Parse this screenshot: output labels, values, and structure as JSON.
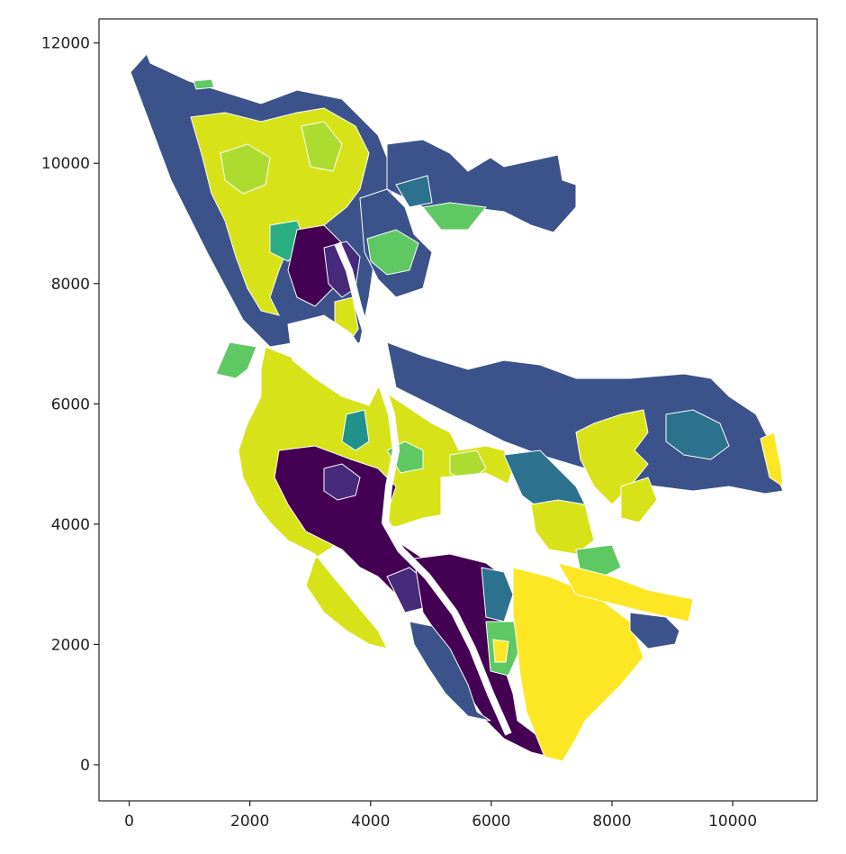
{
  "chart_data": {
    "type": "map",
    "title": "",
    "xlabel": "",
    "ylabel": "",
    "xlim": [
      -500,
      11400
    ],
    "ylim": [
      -600,
      12400
    ],
    "x_ticks": [
      0,
      2000,
      4000,
      6000,
      8000,
      10000
    ],
    "y_ticks": [
      0,
      2000,
      4000,
      6000,
      8000,
      10000,
      12000
    ],
    "x_tick_labels": [
      "0",
      "2000",
      "4000",
      "6000",
      "8000",
      "10000"
    ],
    "y_tick_labels": [
      "0",
      "2000",
      "4000",
      "6000",
      "8000",
      "10000",
      "12000"
    ],
    "colormap": "viridis",
    "palette": [
      "#440154",
      "#472a7a",
      "#3b528b",
      "#2c728e",
      "#21918c",
      "#28ae80",
      "#5ec962",
      "#addc30",
      "#d8e219",
      "#fde725"
    ],
    "grid": false,
    "legend": false
  }
}
